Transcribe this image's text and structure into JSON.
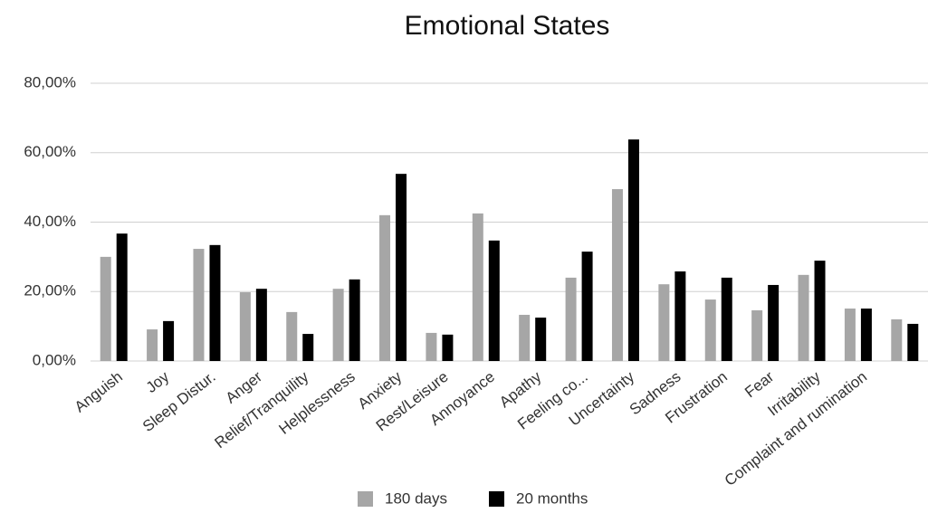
{
  "chart_data": {
    "type": "bar",
    "title": "Emotional States",
    "categories": [
      "Anguish",
      "Joy",
      "Sleep Distur.",
      "Anger",
      "Relief/Tranquility",
      "Helplessness",
      "Anxiety",
      "Rest/Leisure",
      "Annoyance",
      "Apathy",
      "Feeling co...",
      "Uncertainty",
      "Sadness",
      "Frustration",
      "Fear",
      "Irritability",
      "Complaint and rumination",
      null
    ],
    "series": [
      {
        "name": "180 days",
        "color": "#a6a6a6",
        "values": [
          30.0,
          9.1,
          32.3,
          19.8,
          14.1,
          20.8,
          42.0,
          8.1,
          42.5,
          13.3,
          24.0,
          49.5,
          22.1,
          17.7,
          14.6,
          24.8,
          15.1,
          12.0
        ]
      },
      {
        "name": "20 months",
        "color": "#000000",
        "values": [
          36.7,
          11.5,
          33.4,
          20.8,
          7.8,
          23.5,
          53.9,
          7.6,
          34.7,
          12.5,
          31.5,
          63.8,
          25.8,
          24.0,
          21.9,
          28.9,
          15.1,
          10.7
        ]
      }
    ],
    "ylim": [
      0,
      80
    ],
    "yticks": [
      {
        "value": 0,
        "label": "0,00%"
      },
      {
        "value": 20,
        "label": "20,00%"
      },
      {
        "value": 40,
        "label": "40,00%"
      },
      {
        "value": 60,
        "label": "60,00%"
      },
      {
        "value": 80,
        "label": "80,00%"
      }
    ],
    "grid": true,
    "legend": "bottom"
  }
}
